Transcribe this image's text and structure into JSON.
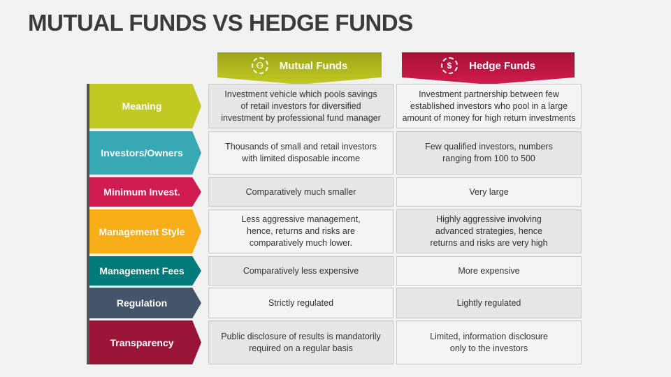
{
  "title": "MUTUAL FUNDS VS HEDGE FUNDS",
  "columns": [
    {
      "label": "Mutual Funds",
      "icon": "investors-network-icon",
      "color": "#c3ca22"
    },
    {
      "label": "Hedge Funds",
      "icon": "dollar-coin-icon",
      "color": "#d21b4e"
    }
  ],
  "rows": [
    {
      "label": "Meaning",
      "color": "#c2c923",
      "mutual": "Investment vehicle which pools savings\nof retail investors for diversified\ninvestment by professional fund manager",
      "hedge": "Investment partnership between few\nestablished investors who pool in a large\namount of money for high return investments"
    },
    {
      "label": "Investors/Owners",
      "color": "#38a9b4",
      "mutual": "Thousands of small and retail investors\nwith limited disposable income",
      "hedge": "Few qualified investors, numbers\nranging from 100 to 500"
    },
    {
      "label": "Minimum Invest.",
      "color": "#d01c50",
      "mutual": "Comparatively much smaller",
      "hedge": "Very large"
    },
    {
      "label": "Management Style",
      "color": "#f8ae18",
      "mutual": "Less aggressive management,\nhence, returns and risks are\ncomparatively much lower.",
      "hedge": "Highly aggressive involving\nadvanced strategies, hence\nreturns and risks are very high"
    },
    {
      "label": "Management Fees",
      "color": "#007a7a",
      "mutual": "Comparatively less expensive",
      "hedge": "More expensive"
    },
    {
      "label": "Regulation",
      "color": "#44546a",
      "mutual": "Strictly regulated",
      "hedge": "Lightly regulated"
    },
    {
      "label": "Transparency",
      "color": "#9a1538",
      "mutual": "Public disclosure of results is mandatorily\nrequired on a regular basis",
      "hedge": "Limited, information disclosure\nonly to the investors"
    }
  ]
}
